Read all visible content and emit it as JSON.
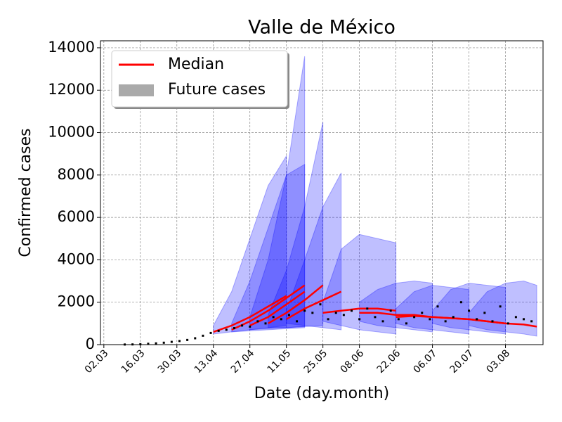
{
  "chart_data": {
    "type": "forecast",
    "title": "Valle de México",
    "x_label": "Date (day.month)",
    "y_label": "Confirmed cases",
    "xlim": [
      -1.3,
      168.4
    ],
    "ylim": [
      0,
      14330
    ],
    "xticks": [
      {
        "value": 0,
        "label": "02.03"
      },
      {
        "value": 14,
        "label": "16.03"
      },
      {
        "value": 28,
        "label": "30.03"
      },
      {
        "value": 42,
        "label": "13.04"
      },
      {
        "value": 56,
        "label": "27.04"
      },
      {
        "value": 70,
        "label": "11.05"
      },
      {
        "value": 84,
        "label": "25.05"
      },
      {
        "value": 98,
        "label": "08.06"
      },
      {
        "value": 112,
        "label": "22.06"
      },
      {
        "value": 126,
        "label": "06.07"
      },
      {
        "value": 140,
        "label": "20.07"
      },
      {
        "value": 154,
        "label": "03.08"
      }
    ],
    "yticks": [
      0,
      2000,
      4000,
      6000,
      8000,
      10000,
      12000,
      14000
    ],
    "grid": true,
    "legend_position": "upper left",
    "median_name": "Median",
    "median_color": "#ff0000",
    "band_name": "Future cases",
    "band_color": "#0000ff",
    "legend_band_color": "#aaaaaa",
    "observed": {
      "color": "#000000",
      "x": [
        8,
        11,
        14,
        17,
        20,
        23,
        26,
        29,
        32,
        35,
        38,
        41,
        44,
        47,
        50,
        53,
        56,
        59,
        62,
        65,
        68,
        71,
        74,
        77,
        80,
        83,
        86,
        89,
        92,
        95,
        98,
        101,
        104,
        107,
        110,
        113,
        116,
        119,
        122,
        125,
        128,
        131,
        134,
        137,
        140,
        143,
        146,
        149,
        152,
        155,
        158,
        161,
        164
      ],
      "values": [
        5,
        10,
        20,
        40,
        60,
        90,
        130,
        170,
        220,
        300,
        420,
        550,
        650,
        700,
        780,
        900,
        850,
        1100,
        1000,
        1300,
        1200,
        1400,
        1100,
        1600,
        1500,
        1900,
        1200,
        1500,
        1400,
        1600,
        1200,
        1700,
        1300,
        1100,
        1600,
        1200,
        1000,
        1300,
        1500,
        1200,
        1800,
        1100,
        1300,
        2000,
        1600,
        1200,
        1500,
        1100,
        1800,
        1000,
        1300,
        1200,
        1100
      ]
    },
    "forecasts": [
      {
        "x": [
          42,
          49,
          56,
          63,
          70
        ],
        "median": [
          600,
          900,
          1300,
          1800,
          2300
        ],
        "lower": [
          500,
          600,
          700,
          800,
          900
        ],
        "upper": [
          900,
          2500,
          5000,
          7500,
          8900
        ]
      },
      {
        "x": [
          49,
          56,
          63,
          70,
          77
        ],
        "median": [
          700,
          1100,
          1600,
          2200,
          2800
        ],
        "lower": [
          600,
          650,
          700,
          750,
          800
        ],
        "upper": [
          1000,
          3000,
          5500,
          8000,
          8500
        ]
      },
      {
        "x": [
          56,
          63,
          70,
          77
        ],
        "median": [
          900,
          1300,
          1900,
          2500
        ],
        "lower": [
          700,
          750,
          800,
          850
        ],
        "upper": [
          1300,
          4000,
          8000,
          13600
        ]
      },
      {
        "x": [
          63,
          70,
          77,
          84
        ],
        "median": [
          1000,
          1500,
          2100,
          2800
        ],
        "lower": [
          800,
          800,
          850,
          900
        ],
        "upper": [
          1400,
          3500,
          6500,
          10500
        ]
      },
      {
        "x": [
          70,
          77,
          84,
          91
        ],
        "median": [
          1200,
          1700,
          2100,
          2500
        ],
        "lower": [
          1000,
          900,
          800,
          700
        ],
        "upper": [
          1600,
          4000,
          6500,
          8100
        ]
      },
      {
        "x": [
          84,
          91,
          98,
          105,
          112
        ],
        "median": [
          1500,
          1600,
          1700,
          1700,
          1600
        ],
        "lower": [
          1100,
          900,
          700,
          600,
          500
        ],
        "upper": [
          2000,
          4500,
          5200,
          5000,
          4800
        ]
      },
      {
        "x": [
          98,
          105,
          112,
          119,
          126
        ],
        "median": [
          1500,
          1500,
          1400,
          1400,
          1300
        ],
        "lower": [
          1100,
          900,
          800,
          700,
          600
        ],
        "upper": [
          2000,
          2600,
          2900,
          3000,
          2900
        ]
      },
      {
        "x": [
          112,
          119,
          126,
          133,
          140
        ],
        "median": [
          1300,
          1350,
          1300,
          1250,
          1200
        ],
        "lower": [
          1000,
          800,
          700,
          600,
          500
        ],
        "upper": [
          1700,
          2500,
          2800,
          2700,
          2600
        ]
      },
      {
        "x": [
          126,
          133,
          140,
          147,
          154
        ],
        "median": [
          1300,
          1250,
          1200,
          1100,
          1000
        ],
        "lower": [
          1000,
          800,
          700,
          600,
          500
        ],
        "upper": [
          1600,
          2600,
          2900,
          2800,
          2700
        ]
      },
      {
        "x": [
          140,
          147,
          154,
          161,
          166
        ],
        "median": [
          1200,
          1100,
          1000,
          950,
          850
        ],
        "lower": [
          900,
          700,
          600,
          500,
          400
        ],
        "upper": [
          1500,
          2500,
          2900,
          3000,
          2800
        ]
      }
    ]
  }
}
